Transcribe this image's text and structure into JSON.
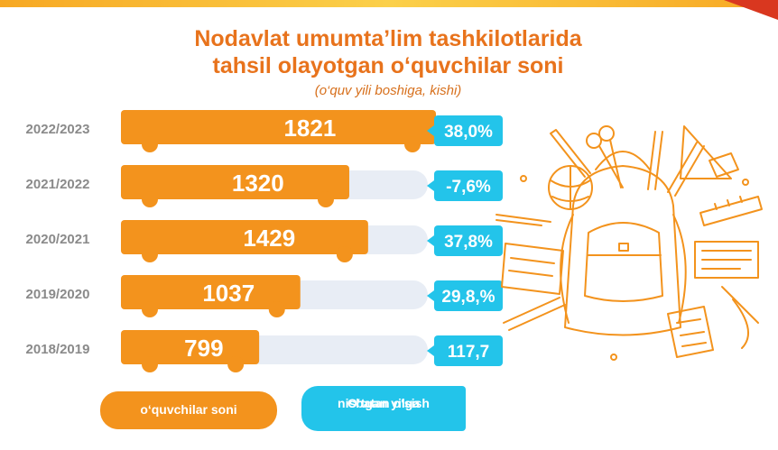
{
  "title_line1": "Nodavlat umumta’lim tashkilotlarida",
  "title_line2": "tahsil olayotgan o‘quvchilar soni",
  "subtitle": "(o‘quv yili boshiga, kishi)",
  "legend": {
    "students": "o‘quvchilar soni",
    "growth_line1": "O‘tgan yilga",
    "growth_line2": "nisbatan o‘sish"
  },
  "colors": {
    "bar": "#f3931d",
    "track": "#e8edf5",
    "badge": "#23c4ea",
    "year_label": "#8a8a8a",
    "title": "#e8731c"
  },
  "illustration": "school-backpack-with-supplies",
  "chart_data": {
    "type": "bar",
    "orientation": "horizontal",
    "categories": [
      "2022/2023",
      "2021/2022",
      "2020/2021",
      "2019/2020",
      "2018/2019"
    ],
    "series": [
      {
        "name": "o‘quvchilar soni",
        "values": [
          1821,
          1320,
          1429,
          1037,
          799
        ]
      },
      {
        "name": "O‘tgan yilga nisbatan o‘sish",
        "values": [
          38.0,
          -7.6,
          37.8,
          29.8,
          117.7
        ]
      }
    ],
    "value_labels": [
      "1821",
      "1320",
      "1429",
      "1037",
      "799"
    ],
    "growth_labels": [
      "38,0%",
      "-7,6%",
      "37,8%",
      "29,8,%",
      "117,7"
    ],
    "title": "Nodavlat umumta’lim tashkilotlarida tahsil olayotgan o‘quvchilar soni",
    "subtitle": "(o‘quv yili boshiga, kishi)",
    "xlim": [
      0,
      1821
    ]
  }
}
